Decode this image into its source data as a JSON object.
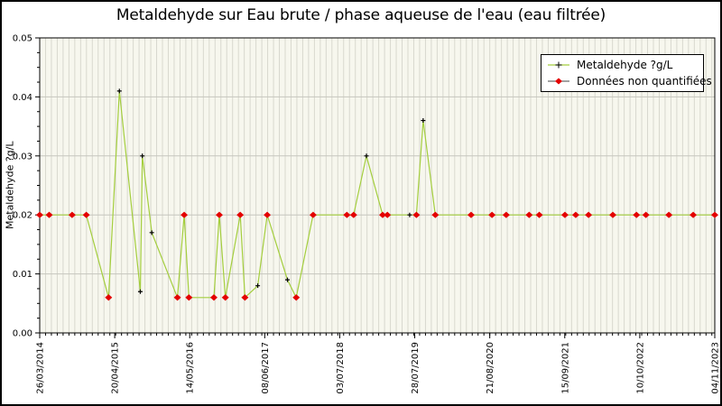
{
  "window": {
    "title": "Metaldehyde sur Eau brute / phase aqueuse de l'eau (eau filtrée)"
  },
  "chart_data": {
    "type": "line",
    "title": "Metaldehyde sur Eau brute / phase aqueuse de l'eau (eau filtrée)",
    "xlabel": "",
    "ylabel": "Metaldehyde ?g/L",
    "ylim": [
      0,
      0.05
    ],
    "y_ticks": [
      "0.00",
      "0.01",
      "0.02",
      "0.03",
      "0.04",
      "0.05"
    ],
    "y_minor_step": 0.0025,
    "x_ticks": [
      "26/03/2014",
      "20/04/2015",
      "14/05/2016",
      "08/06/2017",
      "03/07/2018",
      "28/07/2019",
      "21/08/2020",
      "15/09/2021",
      "10/10/2022",
      "04/11/2023"
    ],
    "x_minor_divisions": 115.5,
    "grid": "vertical monthly minor lines + horizontal major lines",
    "legend": {
      "position": "top-right",
      "entries": [
        {
          "label": "Metaldehyde ?g/L",
          "marker": "black-plus-on-green-line"
        },
        {
          "label": "Données non quantifiées",
          "marker": "red-diamond-on-dark-line"
        }
      ]
    },
    "colors": {
      "line": "#a4ce3e",
      "non_quantified_marker": "#e40000",
      "quantified_marker": "#000000",
      "plot_bg": "#f7f7ee",
      "v_grid": "#d8d8ce",
      "h_grid": "#c6c6be",
      "axis": "#000000"
    },
    "series": [
      {
        "name": "Metaldehyde ?g/L",
        "note": "points as [x_fraction_along_time_axis, value_ug_per_L, flag]; flag nq = donnée non quantifiée (red diamond), q = quantified (black plus)",
        "points": [
          [
            0.0,
            0.02,
            "nq"
          ],
          [
            0.014,
            0.02,
            "nq"
          ],
          [
            0.048,
            0.02,
            "nq"
          ],
          [
            0.069,
            0.02,
            "nq"
          ],
          [
            0.102,
            0.006,
            "nq"
          ],
          [
            0.118,
            0.041,
            "q"
          ],
          [
            0.149,
            0.007,
            "q"
          ],
          [
            0.152,
            0.03,
            "q"
          ],
          [
            0.166,
            0.017,
            "q"
          ],
          [
            0.204,
            0.006,
            "nq"
          ],
          [
            0.214,
            0.02,
            "nq"
          ],
          [
            0.221,
            0.006,
            "nq"
          ],
          [
            0.258,
            0.006,
            "nq"
          ],
          [
            0.266,
            0.02,
            "nq"
          ],
          [
            0.275,
            0.006,
            "nq"
          ],
          [
            0.297,
            0.02,
            "nq"
          ],
          [
            0.304,
            0.006,
            "nq"
          ],
          [
            0.323,
            0.008,
            "q"
          ],
          [
            0.337,
            0.02,
            "nq"
          ],
          [
            0.367,
            0.009,
            "q"
          ],
          [
            0.38,
            0.006,
            "nq"
          ],
          [
            0.405,
            0.02,
            "nq"
          ],
          [
            0.455,
            0.02,
            "nq"
          ],
          [
            0.465,
            0.02,
            "nq"
          ],
          [
            0.484,
            0.03,
            "q"
          ],
          [
            0.508,
            0.02,
            "nq"
          ],
          [
            0.515,
            0.02,
            "nq"
          ],
          [
            0.548,
            0.02,
            "q"
          ],
          [
            0.558,
            0.02,
            "nq"
          ],
          [
            0.568,
            0.036,
            "q"
          ],
          [
            0.586,
            0.02,
            "nq"
          ],
          [
            0.639,
            0.02,
            "nq"
          ],
          [
            0.67,
            0.02,
            "nq"
          ],
          [
            0.691,
            0.02,
            "nq"
          ],
          [
            0.725,
            0.02,
            "nq"
          ],
          [
            0.74,
            0.02,
            "nq"
          ],
          [
            0.778,
            0.02,
            "nq"
          ],
          [
            0.794,
            0.02,
            "nq"
          ],
          [
            0.813,
            0.02,
            "nq"
          ],
          [
            0.849,
            0.02,
            "nq"
          ],
          [
            0.884,
            0.02,
            "nq"
          ],
          [
            0.898,
            0.02,
            "nq"
          ],
          [
            0.932,
            0.02,
            "nq"
          ],
          [
            0.968,
            0.02,
            "nq"
          ],
          [
            1.0,
            0.02,
            "nq"
          ]
        ]
      }
    ]
  }
}
